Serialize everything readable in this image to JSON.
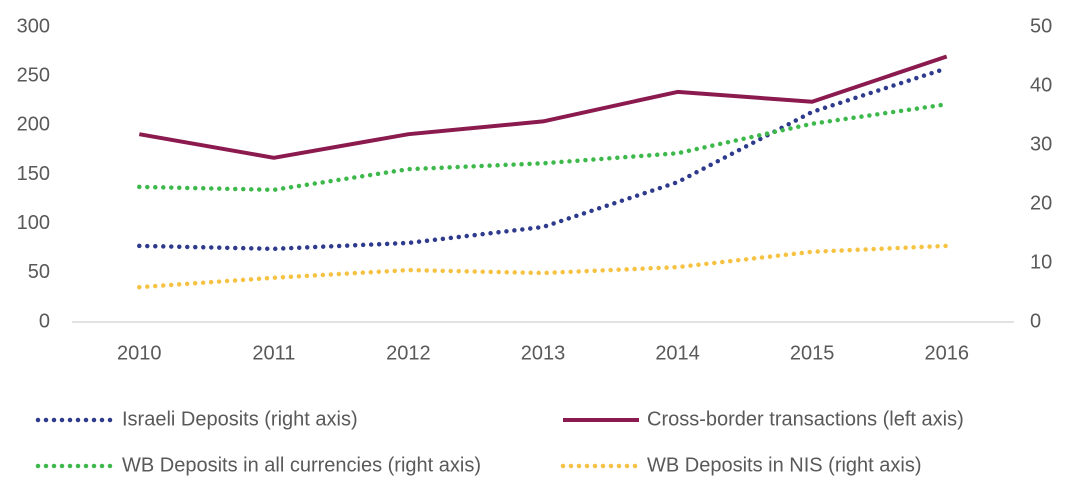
{
  "chart_data": {
    "type": "line",
    "categories": [
      "2010",
      "2011",
      "2012",
      "2013",
      "2014",
      "2015",
      "2016"
    ],
    "series": [
      {
        "name": "Israeli Deposits (right axis)",
        "color": "#2e3a8c",
        "axis": "y2",
        "style": "dotted",
        "values": [
          12.9,
          12.4,
          13.4,
          16.1,
          23.7,
          35.6,
          43
        ]
      },
      {
        "name": "Cross-border transactions (left axis)",
        "color": "#8b1a4f",
        "style": "solid",
        "values": [
          191,
          167,
          191,
          204,
          234,
          224,
          270
        ]
      },
      {
        "name": "WB Deposits in all currencies (right axis)",
        "color": "#3cb94a",
        "axis": "y2",
        "style": "dotted",
        "values": [
          22.9,
          22.4,
          25.9,
          26.9,
          28.6,
          33.6,
          36.9
        ]
      },
      {
        "name": "WB Deposits in NIS (right axis)",
        "color": "#f5c242",
        "axis": "y2",
        "style": "dotted",
        "values": [
          5.9,
          7.5,
          8.8,
          8.3,
          9.3,
          11.9,
          12.9
        ]
      }
    ],
    "ylim": [
      0,
      300
    ],
    "yticks": [
      0,
      50,
      100,
      150,
      200,
      250,
      300
    ],
    "y2lim": [
      0,
      50
    ],
    "y2ticks": [
      0,
      10,
      20,
      30,
      40,
      50
    ],
    "grid": false
  }
}
